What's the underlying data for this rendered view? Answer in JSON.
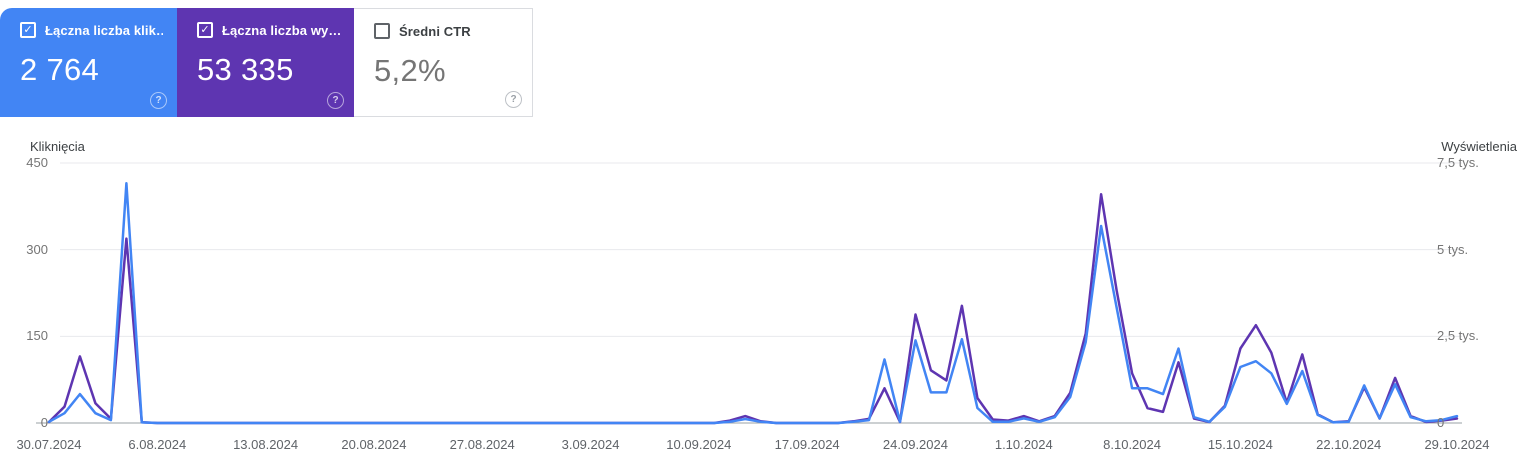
{
  "cards": [
    {
      "id": "total-clicks",
      "label": "Łączna liczba klik…",
      "value": "2 764",
      "checked": true,
      "bg": "#4285f4",
      "fg": "#ffffff"
    },
    {
      "id": "total-impressions",
      "label": "Łączna liczba wy…",
      "value": "53 335",
      "checked": true,
      "bg": "#5e35b1",
      "fg": "#ffffff"
    },
    {
      "id": "avg-ctr",
      "label": "Średni CTR",
      "value": "5,2%",
      "checked": false,
      "bg": "#ffffff",
      "fg": "#757575",
      "label_color": "#3c4043"
    }
  ],
  "help_glyph": "?",
  "check_glyph": "✓",
  "chart_data": {
    "type": "line",
    "grid": "horizontal",
    "legend_position": "none",
    "left_axis": {
      "label": "Kliknięcia",
      "max": 450,
      "ticks": [
        {
          "label": "450",
          "value": 450
        },
        {
          "label": "300",
          "value": 300
        },
        {
          "label": "150",
          "value": 150
        },
        {
          "label": "0",
          "value": 0
        }
      ]
    },
    "right_axis": {
      "label": "Wyświetlenia",
      "max": 7500,
      "ticks": [
        {
          "label": "7,5 tys.",
          "value": 7500
        },
        {
          "label": "5 tys.",
          "value": 5000
        },
        {
          "label": "2,5 tys.",
          "value": 2500
        },
        {
          "label": "0",
          "value": 0
        }
      ]
    },
    "x_tick_labels": [
      "30.07.2024",
      "6.08.2024",
      "13.08.2024",
      "20.08.2024",
      "27.08.2024",
      "3.09.2024",
      "10.09.2024",
      "17.09.2024",
      "24.09.2024",
      "1.10.2024",
      "8.10.2024",
      "15.10.2024",
      "22.10.2024",
      "29.10.2024"
    ],
    "x_tick_day_offsets": [
      0,
      7,
      14,
      21,
      28,
      35,
      42,
      49,
      56,
      63,
      70,
      77,
      84,
      91
    ],
    "dates": [
      "30.07.2024",
      "31.07.2024",
      "1.08.2024",
      "2.08.2024",
      "3.08.2024",
      "4.08.2024",
      "5.08.2024",
      "6.08.2024",
      "7.08.2024",
      "8.08.2024",
      "9.08.2024",
      "10.08.2024",
      "11.08.2024",
      "12.08.2024",
      "13.08.2024",
      "14.08.2024",
      "15.08.2024",
      "16.08.2024",
      "17.08.2024",
      "18.08.2024",
      "19.08.2024",
      "20.08.2024",
      "21.08.2024",
      "22.08.2024",
      "23.08.2024",
      "24.08.2024",
      "25.08.2024",
      "26.08.2024",
      "27.08.2024",
      "28.08.2024",
      "29.08.2024",
      "30.08.2024",
      "31.08.2024",
      "1.09.2024",
      "2.09.2024",
      "3.09.2024",
      "4.09.2024",
      "5.09.2024",
      "6.09.2024",
      "7.09.2024",
      "8.09.2024",
      "9.09.2024",
      "10.09.2024",
      "11.09.2024",
      "12.09.2024",
      "13.09.2024",
      "14.09.2024",
      "15.09.2024",
      "16.09.2024",
      "17.09.2024",
      "18.09.2024",
      "19.09.2024",
      "20.09.2024",
      "21.09.2024",
      "22.09.2024",
      "23.09.2024",
      "24.09.2024",
      "25.09.2024",
      "26.09.2024",
      "27.09.2024",
      "28.09.2024",
      "29.09.2024",
      "30.09.2024",
      "1.10.2024",
      "2.10.2024",
      "3.10.2024",
      "4.10.2024",
      "5.10.2024",
      "6.10.2024",
      "7.10.2024",
      "8.10.2024",
      "9.10.2024",
      "10.10.2024",
      "11.10.2024",
      "12.10.2024",
      "13.10.2024",
      "14.10.2024",
      "15.10.2024",
      "16.10.2024",
      "17.10.2024",
      "18.10.2024",
      "19.10.2024",
      "20.10.2024",
      "21.10.2024",
      "22.10.2024",
      "23.10.2024",
      "24.10.2024",
      "25.10.2024",
      "26.10.2024",
      "27.10.2024",
      "28.10.2024",
      "29.10.2024"
    ],
    "series": [
      {
        "name": "Kliknięcia",
        "axis": "left",
        "color": "#4285f4",
        "values": [
          2,
          17,
          50,
          17,
          5,
          415,
          1,
          0,
          0,
          0,
          0,
          0,
          0,
          0,
          0,
          0,
          0,
          0,
          0,
          0,
          0,
          0,
          0,
          0,
          0,
          0,
          0,
          0,
          0,
          0,
          0,
          0,
          0,
          0,
          0,
          0,
          0,
          0,
          0,
          0,
          0,
          0,
          0,
          0,
          2,
          7,
          2,
          0,
          0,
          0,
          0,
          0,
          2,
          5,
          110,
          2,
          143,
          53,
          53,
          145,
          26,
          2,
          2,
          8,
          2,
          10,
          45,
          140,
          341,
          200,
          60,
          60,
          50,
          129,
          10,
          2,
          28,
          97,
          107,
          86,
          33,
          90,
          14,
          1,
          2,
          65,
          8,
          67,
          10,
          3,
          5,
          12
        ]
      },
      {
        "name": "Wyświetlenia",
        "axis": "right",
        "color": "#5e35b1",
        "values": [
          30,
          470,
          1920,
          570,
          120,
          5320,
          20,
          0,
          0,
          0,
          0,
          0,
          0,
          0,
          0,
          0,
          0,
          0,
          0,
          0,
          0,
          0,
          0,
          0,
          0,
          0,
          0,
          0,
          0,
          0,
          0,
          0,
          0,
          0,
          0,
          0,
          0,
          0,
          0,
          0,
          0,
          0,
          0,
          0,
          70,
          200,
          50,
          0,
          0,
          0,
          0,
          0,
          50,
          120,
          1000,
          30,
          3130,
          1520,
          1230,
          3380,
          720,
          100,
          70,
          200,
          50,
          200,
          870,
          2580,
          6600,
          3830,
          1430,
          430,
          320,
          1750,
          130,
          30,
          500,
          2150,
          2820,
          2030,
          580,
          1980,
          250,
          20,
          50,
          1030,
          130,
          1300,
          200,
          30,
          70,
          130
        ]
      }
    ]
  },
  "colors": {
    "clicks_blue": "#4285f4",
    "impressions_purple": "#5e35b1",
    "gridline": "#e8eaed",
    "baseline": "#9aa0a6",
    "tick_text": "#757575",
    "date_text": "#5f6368"
  }
}
